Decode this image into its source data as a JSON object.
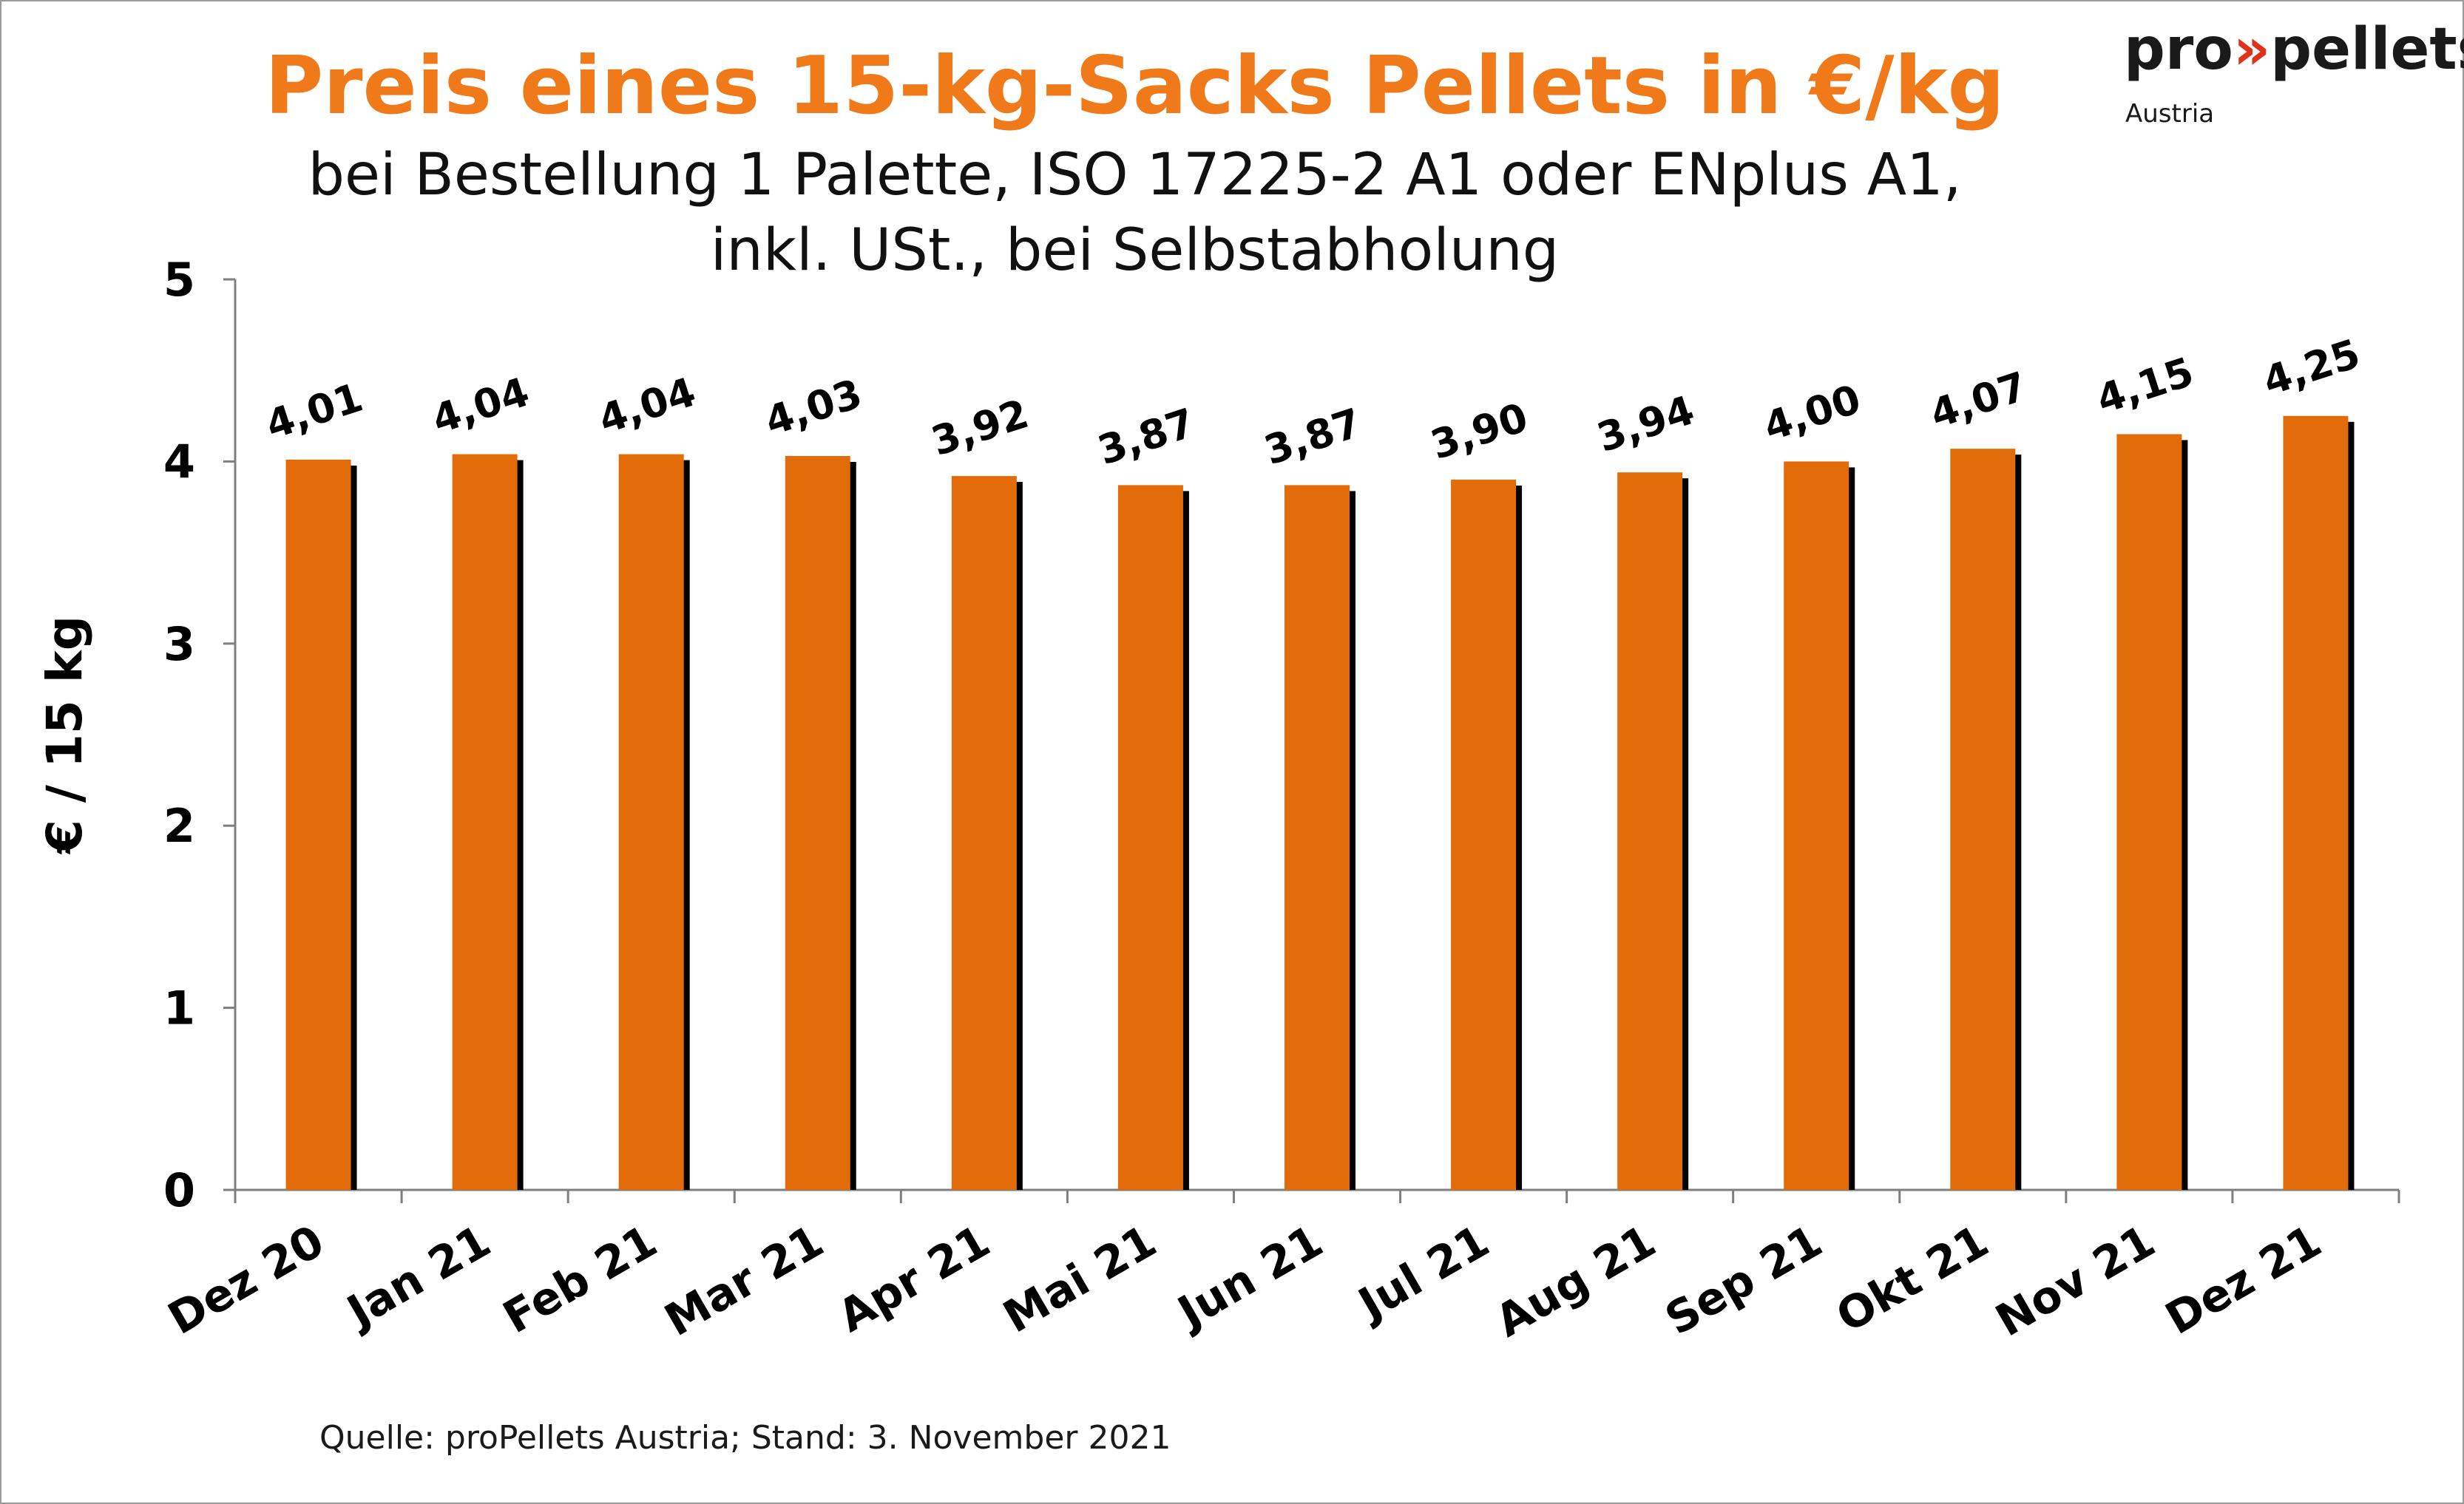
{
  "header": {
    "title": "Preis eines 15-kg-Sacks Pellets in €/kg",
    "subtitle_line1": "bei Bestellung 1 Palette, ISO 17225-2 A1 oder ENplus A1,",
    "subtitle_line2": "inkl. USt., bei Selbstabholung"
  },
  "logo": {
    "part1": "pro",
    "part2": "»",
    "part3": "pellets",
    "sub": "Austria",
    "icon": "propellets-logo",
    "colors": {
      "text": "#1a1a1a",
      "arrow": "#e0321b"
    }
  },
  "source": "Quelle: proPellets Austria; Stand: 3. November 2021",
  "chart_data": {
    "type": "bar",
    "title": "Preis eines 15-kg-Sacks Pellets in €/kg",
    "xlabel": "",
    "ylabel": "€ / 15 kg",
    "ylim": [
      0,
      5
    ],
    "yticks": [
      0,
      1,
      2,
      3,
      4,
      5
    ],
    "grid": false,
    "legend": "none",
    "categories": [
      "Dez 20",
      "Jan 21",
      "Feb 21",
      "Mar 21",
      "Apr 21",
      "Mai 21",
      "Jun 21",
      "Jul 21",
      "Aug 21",
      "Sep 21",
      "Okt 21",
      "Nov 21",
      "Dez 21"
    ],
    "values": [
      4.01,
      4.04,
      4.04,
      4.03,
      3.92,
      3.87,
      3.87,
      3.9,
      3.94,
      4.0,
      4.07,
      4.15,
      4.25
    ],
    "value_labels": [
      "4,01",
      "4,04",
      "4,04",
      "4,03",
      "3,92",
      "3,87",
      "3,87",
      "3,90",
      "3,94",
      "4,00",
      "4,07",
      "4,15",
      "4,25"
    ],
    "colors": {
      "bar": "#e36c0a",
      "shadow": "#000000",
      "axis": "#7f7f7f",
      "text": "#000000"
    }
  }
}
